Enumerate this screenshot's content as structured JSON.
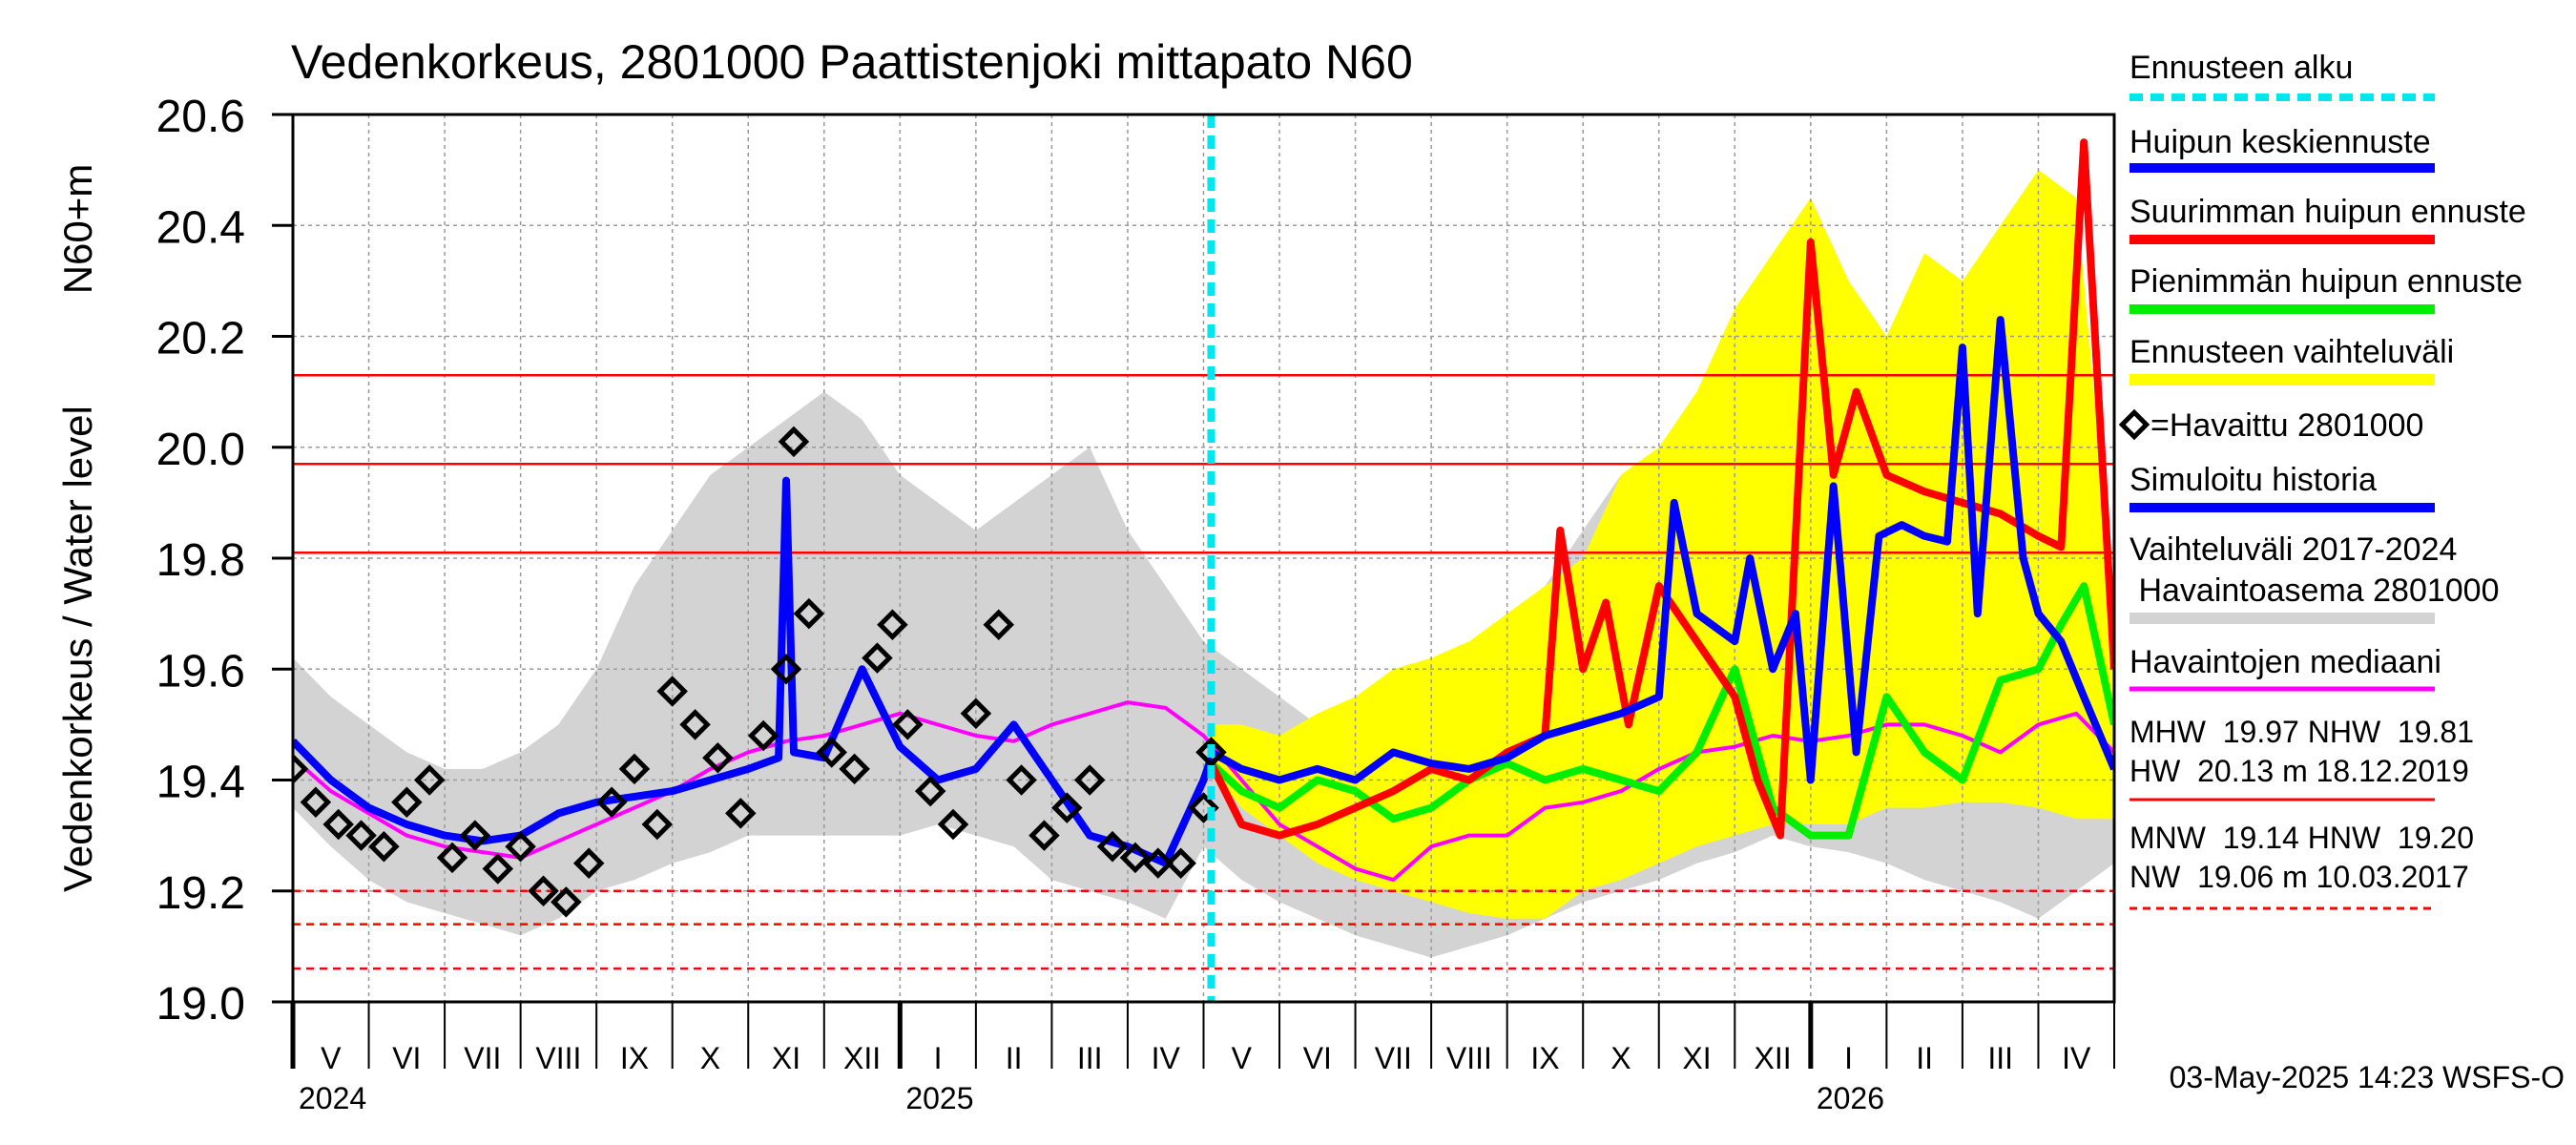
{
  "chart_data": {
    "type": "line",
    "title": "Vedenkorkeus, 2801000 Paattistenjoki mittapato N60",
    "ylabel": "Vedenkorkeus / Water level",
    "yunit": "N60+m",
    "ylim": [
      19.0,
      20.6
    ],
    "yticks": [
      "19.0",
      "19.2",
      "19.4",
      "19.6",
      "19.8",
      "20.0",
      "20.2",
      "20.4",
      "20.6"
    ],
    "xlim_months": [
      0,
      24
    ],
    "months": [
      "V",
      "VI",
      "VII",
      "VIII",
      "IX",
      "X",
      "XI",
      "XII",
      "I",
      "II",
      "III",
      "IV",
      "V",
      "VI",
      "VII",
      "VIII",
      "IX",
      "X",
      "XI",
      "XII",
      "I",
      "II",
      "III",
      "IV"
    ],
    "years": [
      {
        "label": "2024",
        "at": 0
      },
      {
        "label": "2025",
        "at": 8
      },
      {
        "label": "2026",
        "at": 20
      }
    ],
    "forecast_start_month": 12.1,
    "reference_lines": [
      {
        "name": "HW",
        "value": 20.13,
        "style": "solid"
      },
      {
        "name": "MHW",
        "value": 19.97,
        "style": "solid"
      },
      {
        "name": "NHW",
        "value": 19.81,
        "style": "solid"
      },
      {
        "name": "HNW",
        "value": 19.2,
        "style": "dashed"
      },
      {
        "name": "MNW",
        "value": 19.14,
        "style": "dashed"
      },
      {
        "name": "NW",
        "value": 19.06,
        "style": "dashed"
      }
    ],
    "series": [
      {
        "name": "Vaihteluväli 2017-2024 Havaintoasema 2801000",
        "color": "#d3d3d3",
        "x": [
          0,
          0.5,
          1,
          1.5,
          2,
          2.5,
          3,
          3.5,
          4,
          4.5,
          5,
          5.5,
          6,
          6.5,
          7,
          7.5,
          8,
          8.5,
          9,
          9.5,
          10,
          10.5,
          11,
          11.5,
          12,
          12.5,
          13,
          13.5,
          14,
          14.5,
          15,
          15.5,
          16,
          16.5,
          17,
          17.5,
          18,
          18.5,
          19,
          19.5,
          20,
          20.5,
          21,
          21.5,
          22,
          22.5,
          23,
          23.5,
          24
        ],
        "low": [
          19.35,
          19.28,
          19.22,
          19.18,
          19.16,
          19.14,
          19.12,
          19.15,
          19.2,
          19.22,
          19.25,
          19.27,
          19.3,
          19.3,
          19.3,
          19.3,
          19.3,
          19.32,
          19.3,
          19.28,
          19.22,
          19.2,
          19.18,
          19.15,
          19.28,
          19.22,
          19.18,
          19.15,
          19.12,
          19.1,
          19.08,
          19.1,
          19.12,
          19.15,
          19.18,
          19.2,
          19.22,
          19.25,
          19.27,
          19.3,
          19.28,
          19.27,
          19.25,
          19.22,
          19.2,
          19.18,
          19.15,
          19.2,
          19.25
        ],
        "high": [
          19.62,
          19.55,
          19.5,
          19.45,
          19.42,
          19.42,
          19.45,
          19.5,
          19.6,
          19.75,
          19.85,
          19.95,
          20.0,
          20.05,
          20.1,
          20.05,
          19.95,
          19.9,
          19.85,
          19.9,
          19.95,
          20.0,
          19.85,
          19.75,
          19.65,
          19.6,
          19.55,
          19.5,
          19.48,
          19.45,
          19.45,
          19.5,
          19.6,
          19.75,
          19.85,
          19.95,
          20.0,
          20.05,
          20.1,
          20.05,
          19.95,
          19.9,
          19.85,
          19.9,
          19.95,
          20.0,
          19.85,
          19.75,
          19.6
        ]
      },
      {
        "name": "Ennusteen vaihteluväli",
        "color": "#ffff00",
        "x": [
          12.1,
          12.5,
          13,
          13.5,
          14,
          14.5,
          15,
          15.5,
          16,
          16.5,
          17,
          17.5,
          18,
          18.5,
          19,
          19.5,
          20,
          20.5,
          21,
          21.5,
          22,
          22.5,
          23,
          23.5,
          24
        ],
        "low": [
          19.42,
          19.35,
          19.3,
          19.25,
          19.22,
          19.2,
          19.18,
          19.16,
          19.15,
          19.15,
          19.2,
          19.22,
          19.25,
          19.28,
          19.3,
          19.32,
          19.32,
          19.32,
          19.35,
          19.35,
          19.36,
          19.36,
          19.35,
          19.33,
          19.33
        ],
        "high": [
          19.5,
          19.5,
          19.48,
          19.52,
          19.55,
          19.6,
          19.62,
          19.65,
          19.7,
          19.75,
          19.8,
          19.95,
          20.0,
          20.1,
          20.25,
          20.35,
          20.45,
          20.3,
          20.2,
          20.35,
          20.3,
          20.4,
          20.5,
          20.45,
          19.7
        ]
      },
      {
        "name": "Havaintojen mediaani",
        "color": "#ff00ff",
        "x": [
          0,
          0.5,
          1,
          1.5,
          2,
          2.5,
          3,
          3.5,
          4,
          4.5,
          5,
          5.5,
          6,
          6.5,
          7,
          7.5,
          8,
          8.5,
          9,
          9.5,
          10,
          10.5,
          11,
          11.5,
          12,
          12.5,
          13,
          13.5,
          14,
          14.5,
          15,
          15.5,
          16,
          16.5,
          17,
          17.5,
          18,
          18.5,
          19,
          19.5,
          20,
          20.5,
          21,
          21.5,
          22,
          22.5,
          23,
          23.5,
          24
        ],
        "y": [
          19.44,
          19.38,
          19.34,
          19.3,
          19.28,
          19.27,
          19.26,
          19.29,
          19.32,
          19.35,
          19.38,
          19.42,
          19.45,
          19.47,
          19.48,
          19.5,
          19.52,
          19.5,
          19.48,
          19.47,
          19.5,
          19.52,
          19.54,
          19.53,
          19.48,
          19.4,
          19.32,
          19.28,
          19.24,
          19.22,
          19.28,
          19.3,
          19.3,
          19.35,
          19.36,
          19.38,
          19.42,
          19.45,
          19.46,
          19.48,
          19.47,
          19.48,
          19.5,
          19.5,
          19.48,
          19.45,
          19.5,
          19.52,
          19.45
        ]
      },
      {
        "name": "Simuloitu historia",
        "color": "#0000ff",
        "x": [
          0,
          0.5,
          1,
          1.5,
          2,
          2.5,
          3,
          3.5,
          4,
          4.5,
          5,
          5.5,
          6,
          6.4,
          6.5,
          6.6,
          7,
          7.5,
          8,
          8.5,
          9,
          9.5,
          10,
          10.5,
          11,
          11.5,
          12,
          12.1
        ],
        "y": [
          19.47,
          19.4,
          19.35,
          19.32,
          19.3,
          19.29,
          19.3,
          19.34,
          19.36,
          19.37,
          19.38,
          19.4,
          19.42,
          19.44,
          19.94,
          19.45,
          19.44,
          19.6,
          19.46,
          19.4,
          19.42,
          19.5,
          19.4,
          19.3,
          19.28,
          19.25,
          19.4,
          19.44
        ]
      },
      {
        "name": "Huipun keskiennuste",
        "color": "#0000ff",
        "x": [
          12.1,
          12.5,
          13,
          13.5,
          14,
          14.5,
          15,
          15.5,
          16,
          16.5,
          17,
          17.5,
          18,
          18.2,
          18.5,
          19,
          19.2,
          19.5,
          19.8,
          20,
          20.3,
          20.6,
          20.9,
          21.2,
          21.5,
          21.8,
          22,
          22.2,
          22.5,
          22.8,
          23,
          23.3,
          23.6,
          24
        ],
        "y": [
          19.45,
          19.42,
          19.4,
          19.42,
          19.4,
          19.45,
          19.43,
          19.42,
          19.44,
          19.48,
          19.5,
          19.52,
          19.55,
          19.9,
          19.7,
          19.65,
          19.8,
          19.6,
          19.7,
          19.4,
          19.93,
          19.45,
          19.84,
          19.86,
          19.84,
          19.83,
          20.18,
          19.7,
          20.23,
          19.8,
          19.7,
          19.65,
          19.55,
          19.42
        ]
      },
      {
        "name": "Suurimman huipun ennuste",
        "color": "#ff0000",
        "x": [
          12.1,
          12.5,
          13,
          13.5,
          14,
          14.5,
          15,
          15.5,
          16,
          16.5,
          16.7,
          17,
          17.3,
          17.6,
          18,
          18.5,
          19,
          19.3,
          19.6,
          20,
          20.3,
          20.6,
          21,
          21.5,
          22,
          22.5,
          23,
          23.3,
          23.6,
          24
        ],
        "y": [
          19.43,
          19.32,
          19.3,
          19.32,
          19.35,
          19.38,
          19.42,
          19.4,
          19.45,
          19.48,
          19.85,
          19.6,
          19.72,
          19.5,
          19.75,
          19.65,
          19.55,
          19.4,
          19.3,
          20.37,
          19.95,
          20.1,
          19.95,
          19.92,
          19.9,
          19.88,
          19.84,
          19.82,
          20.55,
          19.6
        ]
      },
      {
        "name": "Pienimmän huipun ennuste",
        "color": "#00ee00",
        "x": [
          12.1,
          12.5,
          13,
          13.5,
          14,
          14.5,
          15,
          15.5,
          16,
          16.5,
          17,
          17.5,
          18,
          18.5,
          19,
          19.5,
          20,
          20.5,
          21,
          21.5,
          22,
          22.5,
          23,
          23.3,
          23.6,
          24
        ],
        "y": [
          19.43,
          19.38,
          19.35,
          19.4,
          19.38,
          19.33,
          19.35,
          19.4,
          19.43,
          19.4,
          19.42,
          19.4,
          19.38,
          19.45,
          19.6,
          19.35,
          19.3,
          19.3,
          19.55,
          19.45,
          19.4,
          19.58,
          19.6,
          19.68,
          19.75,
          19.5
        ]
      },
      {
        "name": "Havaittu 2801000",
        "color": "#000000",
        "x": [
          0,
          0.3,
          0.6,
          0.9,
          1.2,
          1.5,
          1.8,
          2.1,
          2.4,
          2.7,
          3,
          3.3,
          3.6,
          3.9,
          4.2,
          4.5,
          4.8,
          5,
          5.3,
          5.6,
          5.9,
          6.2,
          6.5,
          6.6,
          6.8,
          7.1,
          7.4,
          7.7,
          7.9,
          8.1,
          8.4,
          8.7,
          9,
          9.3,
          9.6,
          9.9,
          10.2,
          10.5,
          10.8,
          11.1,
          11.4,
          11.7,
          12,
          12.1
        ],
        "y": [
          19.42,
          19.36,
          19.32,
          19.3,
          19.28,
          19.36,
          19.4,
          19.26,
          19.3,
          19.24,
          19.28,
          19.2,
          19.18,
          19.25,
          19.36,
          19.42,
          19.32,
          19.56,
          19.5,
          19.44,
          19.34,
          19.48,
          19.6,
          20.01,
          19.7,
          19.45,
          19.42,
          19.62,
          19.68,
          19.5,
          19.38,
          19.32,
          19.52,
          19.68,
          19.4,
          19.3,
          19.35,
          19.4,
          19.28,
          19.26,
          19.25,
          19.25,
          19.35,
          19.45
        ]
      }
    ],
    "legend": {
      "forecast_start": "Ennusteen alku",
      "mean_peak": "Huipun keskiennuste",
      "max_peak": "Suurimman huipun ennuste",
      "min_peak": "Pienimmän huipun ennuste",
      "range": "Ennusteen vaihteluväli",
      "observed": "=Havaittu 2801000",
      "simulated": "Simuloitu historia",
      "hist_range_1": "Vaihteluväli 2017-2024",
      "hist_range_2": " Havaintoasema 2801000",
      "median": "Havaintojen mediaani"
    },
    "stats": {
      "line1": "MHW  19.97 NHW  19.81",
      "line2": "HW  20.13 m 18.12.2019",
      "line3": "MNW  19.14 HNW  19.20",
      "line4": "NW  19.06 m 10.03.2017"
    },
    "timestamp": "03-May-2025 14:23 WSFS-O"
  }
}
